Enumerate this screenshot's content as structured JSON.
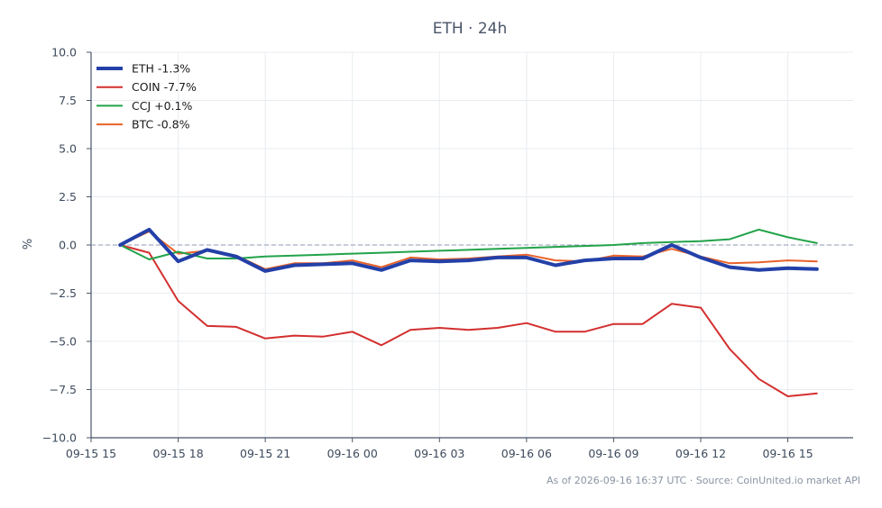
{
  "chart_data": {
    "type": "line",
    "title": "ETH · 24h",
    "xlabel": "",
    "ylabel": "%",
    "ylim": [
      -10.0,
      10.0
    ],
    "yticks": [
      "10.0",
      "7.5",
      "5.0",
      "2.5",
      "0.0",
      "−2.5",
      "−5.0",
      "−7.5",
      "−10.0"
    ],
    "ytick_values": [
      10,
      7.5,
      5,
      2.5,
      0,
      -2.5,
      -5,
      -7.5,
      -10
    ],
    "xlim": [
      "09-15 15:00",
      "09-16 17:15"
    ],
    "xticks": [
      "09-15 15",
      "09-15 18",
      "09-15 21",
      "09-16 00",
      "09-16 03",
      "09-16 06",
      "09-16 09",
      "09-16 12",
      "09-16 15"
    ],
    "xtick_values": [
      "09-15 15:00",
      "09-15 18:00",
      "09-15 21:00",
      "09-16 00:00",
      "09-16 03:00",
      "09-16 06:00",
      "09-16 09:00",
      "09-16 12:00",
      "09-16 15:00"
    ],
    "x": [
      "09-15 16:00",
      "09-15 17:00",
      "09-15 18:00",
      "09-15 19:00",
      "09-15 20:00",
      "09-15 21:00",
      "09-15 22:00",
      "09-15 23:00",
      "09-16 00:00",
      "09-16 01:00",
      "09-16 02:00",
      "09-16 03:00",
      "09-16 04:00",
      "09-16 05:00",
      "09-16 06:00",
      "09-16 07:00",
      "09-16 08:00",
      "09-16 09:00",
      "09-16 10:00",
      "09-16 11:00",
      "09-16 12:00",
      "09-16 13:00",
      "09-16 14:00",
      "09-16 15:00",
      "09-16 16:00"
    ],
    "reference_line": 0,
    "grid": true,
    "legend_position": "top-left",
    "series": [
      {
        "name": "ETH -1.3%",
        "color": "#2340a8",
        "width": 4,
        "values": [
          0.0,
          0.8,
          -0.85,
          -0.25,
          -0.6,
          -1.35,
          -1.05,
          -1.0,
          -0.95,
          -1.3,
          -0.8,
          -0.85,
          -0.8,
          -0.65,
          -0.65,
          -1.05,
          -0.8,
          -0.7,
          -0.7,
          0.0,
          -0.65,
          -1.15,
          -1.3,
          -1.2,
          -1.25
        ]
      },
      {
        "name": "COIN -7.7%",
        "color": "#d32f2f",
        "width": 2,
        "values": [
          0.0,
          -0.4,
          -2.9,
          -4.2,
          -4.25,
          -4.85,
          -4.7,
          -4.75,
          -4.5,
          -5.2,
          -4.4,
          -4.3,
          -4.4,
          -4.3,
          -4.05,
          -4.5,
          -4.5,
          -4.1,
          -4.1,
          -3.05,
          -3.25,
          -5.4,
          -6.95,
          -7.85,
          -7.7
        ]
      },
      {
        "name": "CCJ +0.1%",
        "color": "#22a34a",
        "width": 2,
        "values": [
          0.0,
          -0.75,
          -0.35,
          -0.7,
          -0.7,
          -0.6,
          -0.55,
          -0.5,
          -0.45,
          -0.4,
          -0.35,
          -0.3,
          -0.25,
          -0.2,
          -0.15,
          -0.1,
          -0.05,
          0.0,
          0.1,
          0.15,
          0.2,
          0.3,
          0.8,
          0.4,
          0.1
        ]
      },
      {
        "name": "BTC -0.8%",
        "color": "#e8622a",
        "width": 2,
        "values": [
          0.0,
          0.7,
          -0.45,
          -0.3,
          -0.55,
          -1.25,
          -0.95,
          -0.95,
          -0.8,
          -1.15,
          -0.65,
          -0.75,
          -0.7,
          -0.6,
          -0.5,
          -0.8,
          -0.85,
          -0.55,
          -0.6,
          -0.2,
          -0.6,
          -0.95,
          -0.9,
          -0.8,
          -0.85
        ]
      }
    ],
    "footer": "As of 2026-09-16 16:37 UTC · Source: CoinUnited.io market API"
  }
}
